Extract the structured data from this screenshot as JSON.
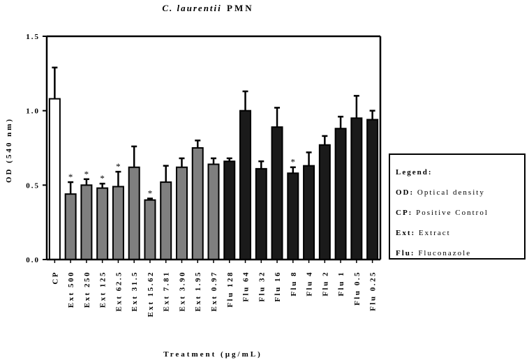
{
  "chart_data": {
    "type": "bar",
    "title_italic": "C. laurentii",
    "title_plain": "PMN",
    "xlabel": "Treatment (µg/mL)",
    "ylabel": "OD (540 nm)",
    "ylim": [
      0,
      1.5
    ],
    "yticks": [
      "0.0",
      "0.5",
      "1.0",
      "1.5"
    ],
    "ytick_values": [
      0,
      0.5,
      1.0,
      1.5
    ],
    "colors": {
      "cp": "#ffffff",
      "ext": "#7f7f7f",
      "flu": "#1a1a1a",
      "axis": "#000000"
    },
    "categories": [
      "CP",
      "Ext 500",
      "Ext 250",
      "Ext 125",
      "Ext 62.5",
      "Ext 31.5",
      "Ext 15.62",
      "Ext 7.81",
      "Ext 3.90",
      "Ext 1.95",
      "Ext 0.97",
      "Flu 128",
      "Flu 64",
      "Flu 32",
      "Flu 16",
      "Flu 8",
      "Flu 4",
      "Flu 2",
      "Flu 1",
      "Flu 0.5",
      "Flu 0.25"
    ],
    "groups": [
      "cp",
      "ext",
      "ext",
      "ext",
      "ext",
      "ext",
      "ext",
      "ext",
      "ext",
      "ext",
      "ext",
      "flu",
      "flu",
      "flu",
      "flu",
      "flu",
      "flu",
      "flu",
      "flu",
      "flu",
      "flu"
    ],
    "values": [
      1.08,
      0.44,
      0.5,
      0.48,
      0.49,
      0.62,
      0.4,
      0.52,
      0.62,
      0.75,
      0.64,
      0.66,
      1.0,
      0.61,
      0.89,
      0.58,
      0.63,
      0.77,
      0.88,
      0.95,
      0.94
    ],
    "errors": [
      0.21,
      0.08,
      0.04,
      0.03,
      0.1,
      0.14,
      0.01,
      0.11,
      0.06,
      0.05,
      0.04,
      0.02,
      0.13,
      0.05,
      0.13,
      0.04,
      0.09,
      0.06,
      0.08,
      0.15,
      0.06
    ],
    "significance": [
      "",
      "*",
      "*",
      "*",
      "*",
      "",
      "*",
      "",
      "",
      "",
      "",
      "",
      "",
      "",
      "",
      "*",
      "",
      "",
      "",
      "",
      ""
    ]
  },
  "legend": {
    "title": "Legend:",
    "items": [
      {
        "key": "OD:",
        "text": "Optical density"
      },
      {
        "key": "CP:",
        "text": "Positive Control"
      },
      {
        "key": "Ext:",
        "text": "Extract"
      },
      {
        "key": "Flu:",
        "text": "Fluconazole"
      }
    ]
  }
}
